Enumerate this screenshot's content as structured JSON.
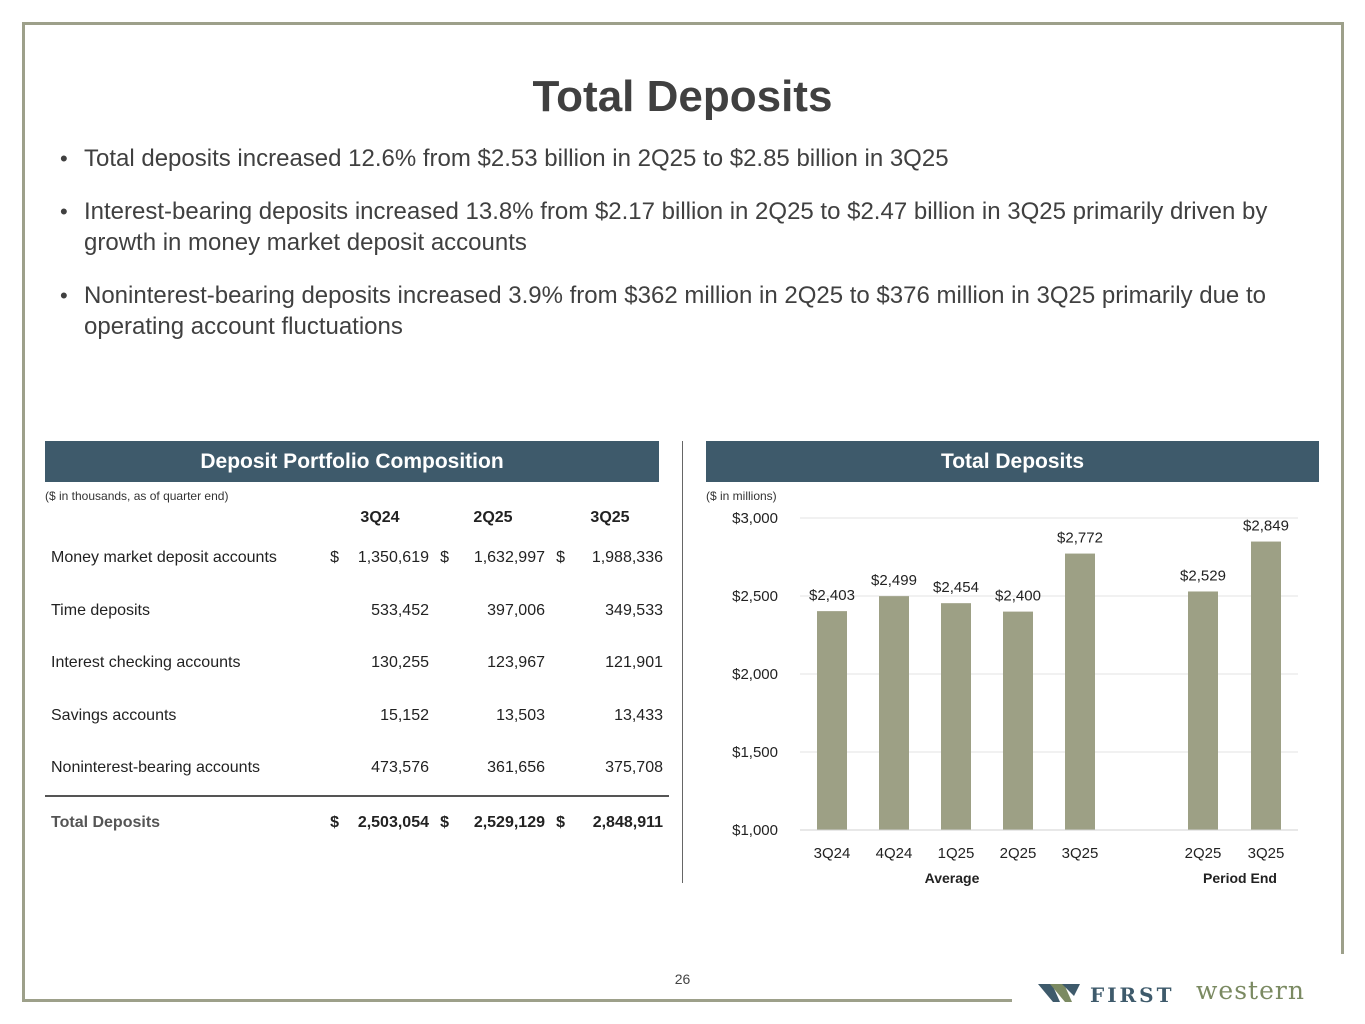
{
  "title": "Total Deposits",
  "bullets": [
    "Total deposits increased 12.6% from $2.53 billion in 2Q25 to $2.85 billion in 3Q25",
    "Interest-bearing deposits increased 13.8% from $2.17 billion in 2Q25 to $2.47 billion in 3Q25 primarily driven by growth in money market deposit accounts",
    "Noninterest-bearing deposits increased 3.9% from $362 million in 2Q25 to $376 million in 3Q25 primarily due to operating account fluctuations"
  ],
  "left_panel": {
    "header": "Deposit Portfolio Composition",
    "note": "($ in thousands, as of quarter end)",
    "columns": [
      "3Q24",
      "2Q25",
      "3Q25"
    ],
    "rows": [
      {
        "label": "Money market deposit accounts",
        "cur": "$",
        "values": [
          "1,350,619",
          "1,632,997",
          "1,988,336"
        ]
      },
      {
        "label": "Time deposits",
        "cur": "",
        "values": [
          "533,452",
          "397,006",
          "349,533"
        ]
      },
      {
        "label": "Interest checking accounts",
        "cur": "",
        "values": [
          "130,255",
          "123,967",
          "121,901"
        ]
      },
      {
        "label": "Savings accounts",
        "cur": "",
        "values": [
          "15,152",
          "13,503",
          "13,433"
        ]
      },
      {
        "label": "Noninterest-bearing accounts",
        "cur": "",
        "values": [
          "473,576",
          "361,656",
          "375,708"
        ]
      }
    ],
    "total": {
      "label": "Total Deposits",
      "cur": "$",
      "values": [
        "2,503,054",
        "2,529,129",
        "2,848,911"
      ]
    }
  },
  "right_panel": {
    "header": "Total Deposits",
    "note": "($ in millions)"
  },
  "chart_data": {
    "type": "bar",
    "title": "Total Deposits",
    "ylabel": "($ in millions)",
    "ylim": [
      1000,
      3000
    ],
    "yticks": [
      1000,
      1500,
      2000,
      2500,
      3000
    ],
    "ytick_labels": [
      "$1,000",
      "$1,500",
      "$2,000",
      "$2,500",
      "$3,000"
    ],
    "grid": true,
    "groups": [
      {
        "name": "Average",
        "categories": [
          "3Q24",
          "4Q24",
          "1Q25",
          "2Q25",
          "3Q25"
        ],
        "values": [
          2403,
          2499,
          2454,
          2400,
          2772
        ],
        "labels": [
          "$2,403",
          "$2,499",
          "$2,454",
          "$2,400",
          "$2,772"
        ]
      },
      {
        "name": "Period End",
        "categories": [
          "2Q25",
          "3Q25"
        ],
        "values": [
          2529,
          2849
        ],
        "labels": [
          "$2,529",
          "$2,849"
        ]
      }
    ],
    "bar_color": "#9da085"
  },
  "page_number": "26",
  "logo": {
    "word1": "FIRST",
    "word2": "western"
  }
}
